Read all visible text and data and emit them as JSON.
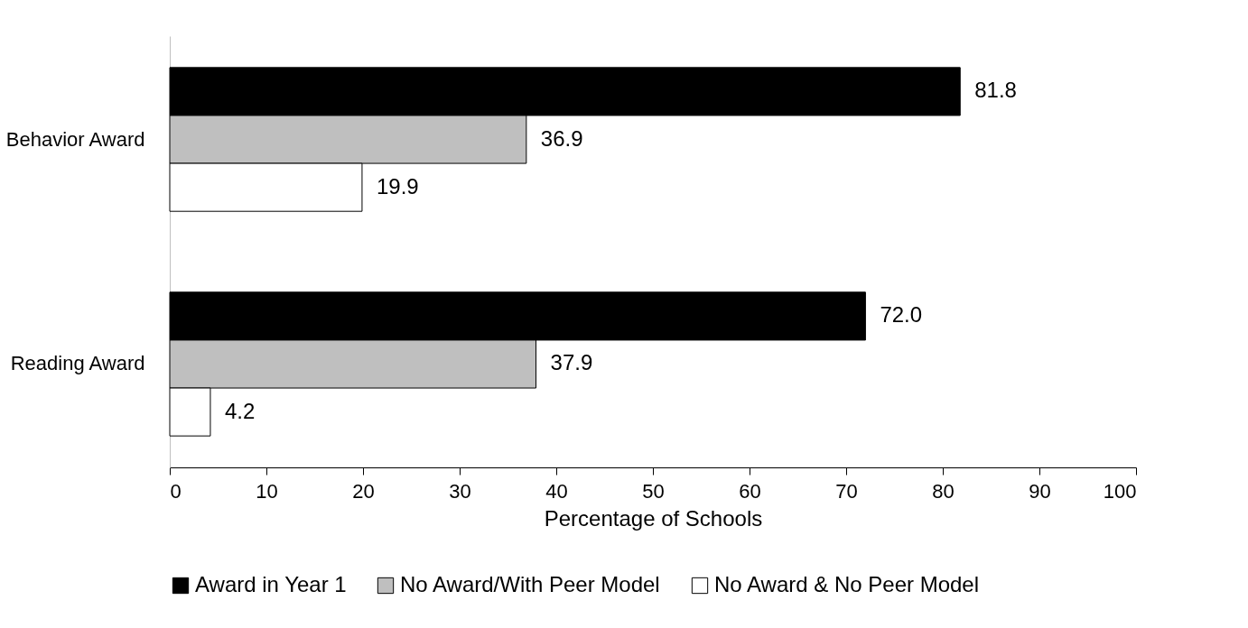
{
  "chart_data": {
    "type": "bar",
    "orientation": "horizontal",
    "xlabel": "Percentage of Schools",
    "categories": [
      "Behavior Award",
      "Reading Award"
    ],
    "series": [
      {
        "name": "Award in Year 1",
        "color": "#000000",
        "values": [
          81.8,
          72.0
        ],
        "value_labels": [
          "81.8",
          "72.0"
        ]
      },
      {
        "name": "No Award/With Peer Model",
        "color": "#bfbfbf",
        "values": [
          36.9,
          37.9
        ],
        "value_labels": [
          "36.9",
          "37.9"
        ]
      },
      {
        "name": "No Award & No Peer Model",
        "color": "#ffffff",
        "values": [
          19.9,
          4.2
        ],
        "value_labels": [
          "19.9",
          "4.2"
        ]
      }
    ],
    "xlim": [
      0,
      100
    ],
    "xticks": [
      0,
      10,
      20,
      30,
      40,
      50,
      60,
      70,
      80,
      90,
      100
    ],
    "grid": false,
    "legend": "bottom"
  }
}
